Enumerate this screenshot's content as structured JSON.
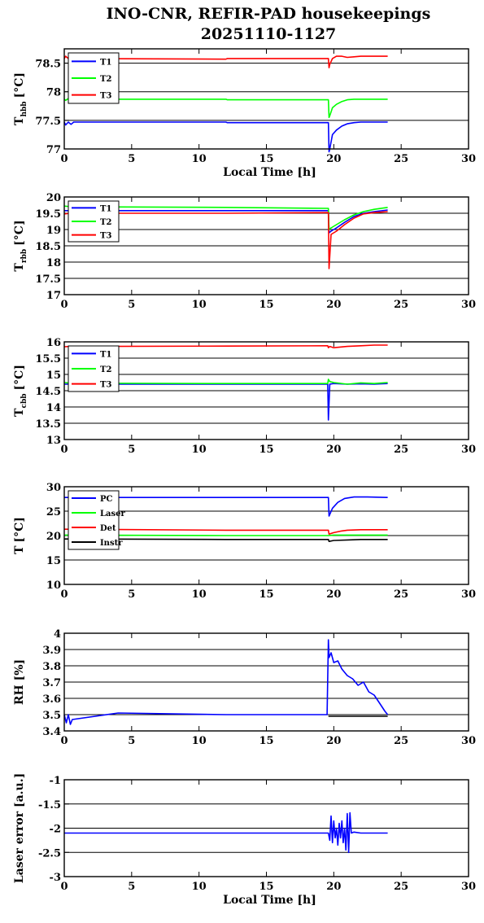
{
  "title_line1": "INO-CNR, REFIR-PAD housekeepings",
  "title_line2": "20251110-1127",
  "chart_data": [
    {
      "type": "line",
      "ylabel_main": "T",
      "ylabel_sub": "hbb",
      "ylabel_unit": "[°C]",
      "xlabel": "Local Time [h]",
      "xlim": [
        0,
        30
      ],
      "ylim": [
        77,
        78.75
      ],
      "xticks": [
        "0",
        "5",
        "10",
        "15",
        "20",
        "25",
        "30"
      ],
      "yticks": [
        {
          "v": 77,
          "t": "77"
        },
        {
          "v": 77.5,
          "t": "77.5"
        },
        {
          "v": 78,
          "t": "78"
        },
        {
          "v": 78.5,
          "t": "78.5"
        }
      ],
      "grid": true,
      "legend": "top-left",
      "series": [
        {
          "name": "T1",
          "color": "#0000ff",
          "x": [
            0,
            0.1,
            0.3,
            0.5,
            0.7,
            12,
            12.1,
            19.6,
            19.65,
            19.7,
            19.9,
            20.2,
            20.6,
            21,
            21.5,
            22,
            23,
            24
          ],
          "y": [
            77.47,
            77.42,
            77.47,
            77.43,
            77.47,
            77.47,
            77.46,
            77.46,
            76.95,
            77.0,
            77.25,
            77.33,
            77.4,
            77.44,
            77.46,
            77.47,
            77.47,
            77.47
          ]
        },
        {
          "name": "T2",
          "color": "#00ff00",
          "x": [
            0,
            0.1,
            0.3,
            0.5,
            0.7,
            12,
            12.1,
            19.6,
            19.65,
            19.7,
            19.9,
            20.2,
            20.6,
            21,
            21.5,
            22,
            23,
            24
          ],
          "y": [
            77.87,
            77.85,
            77.88,
            77.86,
            77.87,
            77.87,
            77.86,
            77.86,
            77.55,
            77.58,
            77.72,
            77.78,
            77.83,
            77.86,
            77.87,
            77.87,
            77.87,
            77.87
          ]
        },
        {
          "name": "T3",
          "color": "#ff0000",
          "x": [
            0,
            0.1,
            0.3,
            0.5,
            0.7,
            12,
            12.1,
            19.6,
            19.65,
            19.7,
            19.9,
            20.2,
            20.6,
            21,
            21.5,
            22,
            23,
            24
          ],
          "y": [
            78.58,
            78.62,
            78.58,
            78.61,
            78.58,
            78.57,
            78.58,
            78.58,
            78.42,
            78.48,
            78.58,
            78.62,
            78.62,
            78.6,
            78.61,
            78.62,
            78.62,
            78.62
          ]
        }
      ]
    },
    {
      "type": "line",
      "ylabel_main": "T",
      "ylabel_sub": "rbb",
      "ylabel_unit": "[°C]",
      "xlabel": "",
      "xlim": [
        0,
        30
      ],
      "ylim": [
        17,
        20
      ],
      "xticks": [
        "0",
        "5",
        "10",
        "15",
        "20",
        "25",
        "30"
      ],
      "yticks": [
        {
          "v": 17,
          "t": "17"
        },
        {
          "v": 17.5,
          "t": "17.5"
        },
        {
          "v": 18,
          "t": "18"
        },
        {
          "v": 18.5,
          "t": "18.5"
        },
        {
          "v": 19,
          "t": "19"
        },
        {
          "v": 19.5,
          "t": "19.5"
        },
        {
          "v": 20,
          "t": "20"
        }
      ],
      "grid": true,
      "legend": "top-left",
      "series": [
        {
          "name": "T1",
          "color": "#0000ff",
          "x": [
            0,
            0.5,
            12,
            19.6,
            19.65,
            19.8,
            20.2,
            20.8,
            21.5,
            22.2,
            23,
            24
          ],
          "y": [
            19.58,
            19.58,
            19.58,
            19.58,
            18.9,
            18.95,
            19.05,
            19.22,
            19.4,
            19.5,
            19.55,
            19.6
          ]
        },
        {
          "name": "T2",
          "color": "#00ff00",
          "x": [
            0,
            0.5,
            12,
            19.6,
            19.65,
            19.8,
            20.2,
            20.8,
            21.5,
            22.2,
            23,
            24
          ],
          "y": [
            19.72,
            19.7,
            19.68,
            19.65,
            19.0,
            19.05,
            19.15,
            19.3,
            19.45,
            19.55,
            19.62,
            19.68
          ]
        },
        {
          "name": "T3",
          "color": "#ff0000",
          "x": [
            0,
            0.5,
            12,
            19.6,
            19.65,
            19.8,
            20.2,
            20.8,
            21.5,
            22.2,
            23,
            24
          ],
          "y": [
            19.48,
            19.5,
            19.5,
            19.52,
            17.8,
            18.85,
            18.95,
            19.15,
            19.35,
            19.48,
            19.52,
            19.55
          ]
        }
      ]
    },
    {
      "type": "line",
      "ylabel_main": "T",
      "ylabel_sub": "cbb",
      "ylabel_unit": "[°C]",
      "xlabel": "",
      "xlim": [
        0,
        30
      ],
      "ylim": [
        13,
        16
      ],
      "xticks": [
        "0",
        "5",
        "10",
        "15",
        "20",
        "25",
        "30"
      ],
      "yticks": [
        {
          "v": 13,
          "t": "13"
        },
        {
          "v": 13.5,
          "t": "13.5"
        },
        {
          "v": 14,
          "t": "14"
        },
        {
          "v": 14.5,
          "t": "14.5"
        },
        {
          "v": 15,
          "t": "15"
        },
        {
          "v": 15.5,
          "t": "15.5"
        },
        {
          "v": 16,
          "t": "16"
        }
      ],
      "grid": true,
      "legend": "top-left",
      "series": [
        {
          "name": "T1",
          "color": "#0000ff",
          "x": [
            0,
            0.5,
            12,
            19.55,
            19.6,
            19.7,
            20,
            21,
            22,
            23,
            24
          ],
          "y": [
            14.7,
            14.7,
            14.7,
            14.7,
            13.6,
            14.7,
            14.72,
            14.7,
            14.71,
            14.7,
            14.72
          ]
        },
        {
          "name": "T2",
          "color": "#00ff00",
          "x": [
            0,
            0.5,
            12,
            19.55,
            19.6,
            19.7,
            20,
            21,
            22,
            23,
            24
          ],
          "y": [
            14.75,
            14.73,
            14.72,
            14.72,
            14.85,
            14.78,
            14.75,
            14.7,
            14.74,
            14.72,
            14.75
          ]
        },
        {
          "name": "T3",
          "color": "#ff0000",
          "x": [
            0,
            0.5,
            12,
            19.55,
            19.6,
            19.7,
            20,
            21,
            22,
            23,
            24
          ],
          "y": [
            15.85,
            15.86,
            15.87,
            15.88,
            15.82,
            15.86,
            15.82,
            15.86,
            15.88,
            15.9,
            15.9
          ]
        }
      ]
    },
    {
      "type": "line",
      "ylabel_main": "T",
      "ylabel_sub": "",
      "ylabel_unit": "[°C]",
      "xlabel": "",
      "xlim": [
        0,
        30
      ],
      "ylim": [
        10,
        30
      ],
      "xticks": [
        "0",
        "5",
        "10",
        "15",
        "20",
        "25",
        "30"
      ],
      "yticks": [
        {
          "v": 10,
          "t": "10"
        },
        {
          "v": 15,
          "t": "15"
        },
        {
          "v": 20,
          "t": "20"
        },
        {
          "v": 25,
          "t": "25"
        },
        {
          "v": 30,
          "t": "30"
        }
      ],
      "grid": true,
      "legend": "top-left",
      "series": [
        {
          "name": "PC",
          "color": "#0000ff",
          "x": [
            0,
            0.5,
            12,
            19.6,
            19.65,
            19.9,
            20.3,
            20.8,
            21.5,
            22.5,
            24
          ],
          "y": [
            27.8,
            27.8,
            27.8,
            27.8,
            24.0,
            25.6,
            26.8,
            27.6,
            27.9,
            27.9,
            27.8
          ]
        },
        {
          "name": "Laser",
          "color": "#00ff00",
          "x": [
            0,
            0.5,
            12,
            19.6,
            20,
            22,
            24
          ],
          "y": [
            20.1,
            20.1,
            20.0,
            20.0,
            20.1,
            20.1,
            20.1
          ]
        },
        {
          "name": "Det",
          "color": "#ff0000",
          "x": [
            0,
            0.5,
            12,
            19.6,
            19.65,
            20,
            20.5,
            21,
            22,
            24
          ],
          "y": [
            21.3,
            21.3,
            21.1,
            21.1,
            20.3,
            20.6,
            20.9,
            21.1,
            21.2,
            21.2
          ]
        },
        {
          "name": "Instr",
          "color": "#000000",
          "x": [
            0,
            0.5,
            12,
            19.6,
            19.65,
            20,
            21,
            22,
            24
          ],
          "y": [
            19.3,
            19.3,
            19.2,
            19.2,
            18.8,
            19.0,
            19.1,
            19.2,
            19.2
          ]
        }
      ]
    },
    {
      "type": "line",
      "ylabel_main": "RH [%]",
      "ylabel_sub": "",
      "ylabel_unit": "",
      "xlabel": "",
      "xlim": [
        0,
        30
      ],
      "ylim": [
        3.4,
        4
      ],
      "xticks": [
        "0",
        "5",
        "10",
        "15",
        "20",
        "25",
        "30"
      ],
      "yticks": [
        {
          "v": 3.4,
          "t": "3.4"
        },
        {
          "v": 3.5,
          "t": "3.5"
        },
        {
          "v": 3.6,
          "t": "3.6"
        },
        {
          "v": 3.7,
          "t": "3.7"
        },
        {
          "v": 3.8,
          "t": "3.8"
        },
        {
          "v": 3.9,
          "t": "3.9"
        },
        {
          "v": 4,
          "t": "4"
        }
      ],
      "grid": true,
      "legend": "",
      "series": [
        {
          "name": "",
          "color": "#0000ff",
          "x": [
            0,
            0.15,
            0.3,
            0.45,
            0.6,
            4,
            12,
            19.5,
            19.6,
            19.65,
            19.8,
            20,
            20.3,
            20.6,
            21,
            21.4,
            21.8,
            22.2,
            22.6,
            23,
            23.4,
            23.8,
            24
          ],
          "y": [
            3.5,
            3.45,
            3.5,
            3.44,
            3.47,
            3.51,
            3.5,
            3.5,
            3.96,
            3.85,
            3.88,
            3.82,
            3.83,
            3.78,
            3.74,
            3.72,
            3.68,
            3.7,
            3.64,
            3.62,
            3.57,
            3.52,
            3.5
          ]
        },
        {
          "name": "",
          "color": "#000000",
          "x": [
            19.6,
            24
          ],
          "y": [
            3.49,
            3.49
          ]
        }
      ]
    },
    {
      "type": "line",
      "ylabel_main": "Laser error [a.u.]",
      "ylabel_sub": "",
      "ylabel_unit": "",
      "xlabel": "Local Time [h]",
      "xlim": [
        0,
        30
      ],
      "ylim": [
        -3,
        -1
      ],
      "xticks": [
        "0",
        "5",
        "10",
        "15",
        "20",
        "25",
        "30"
      ],
      "yticks": [
        {
          "v": -3,
          "t": "-3"
        },
        {
          "v": -2.5,
          "t": "-2.5"
        },
        {
          "v": -2,
          "t": "-2"
        },
        {
          "v": -1.5,
          "t": "-1.5"
        },
        {
          "v": -1,
          "t": "-1"
        }
      ],
      "grid": true,
      "legend": "",
      "series": [
        {
          "name": "",
          "color": "#0000ff",
          "x": [
            0,
            12,
            19.6,
            19.7,
            19.8,
            19.9,
            20,
            20.1,
            20.2,
            20.3,
            20.4,
            20.5,
            20.6,
            20.7,
            20.8,
            20.9,
            21,
            21.1,
            21.2,
            21.3,
            21.5,
            22,
            23,
            24
          ],
          "y": [
            -2.1,
            -2.1,
            -2.1,
            -2.25,
            -1.75,
            -2.3,
            -1.85,
            -2.2,
            -2.0,
            -2.35,
            -1.9,
            -2.2,
            -1.85,
            -2.3,
            -2.0,
            -2.45,
            -1.7,
            -2.5,
            -1.68,
            -2.1,
            -2.08,
            -2.1,
            -2.1,
            -2.1
          ]
        }
      ]
    }
  ]
}
